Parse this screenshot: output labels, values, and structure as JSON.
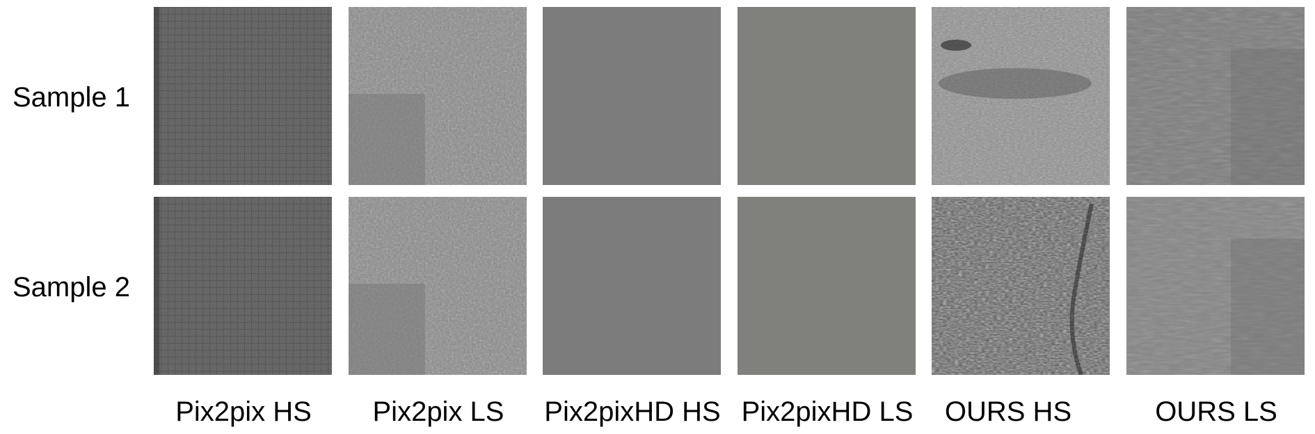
{
  "rows": [
    {
      "label": "Sample 1"
    },
    {
      "label": "Sample 2"
    }
  ],
  "columns": [
    {
      "label": "Pix2pix HS"
    },
    {
      "label": "Pix2pix LS"
    },
    {
      "label": "Pix2pixHD HS"
    },
    {
      "label": "Pix2pixHD LS"
    },
    {
      "label": "OURS HS"
    },
    {
      "label": "OURS LS"
    }
  ],
  "tiles": [
    [
      {
        "style": "pix2pix-hs",
        "base": "#555555"
      },
      {
        "style": "pix2pix-ls",
        "base": "#8a8a8a"
      },
      {
        "style": "flat",
        "base": "#7c7c7c"
      },
      {
        "style": "flat",
        "base": "#80807c"
      },
      {
        "style": "ours-hs-1",
        "base": "#8f8f8f"
      },
      {
        "style": "ours-ls",
        "base": "#7e7e7e"
      }
    ],
    [
      {
        "style": "pix2pix-hs",
        "base": "#555555"
      },
      {
        "style": "pix2pix-ls",
        "base": "#8a8a8a"
      },
      {
        "style": "flat",
        "base": "#7c7c7c"
      },
      {
        "style": "flat",
        "base": "#80807c"
      },
      {
        "style": "ours-hs-2",
        "base": "#5a5a5a"
      },
      {
        "style": "ours-ls",
        "base": "#858585"
      }
    ]
  ]
}
